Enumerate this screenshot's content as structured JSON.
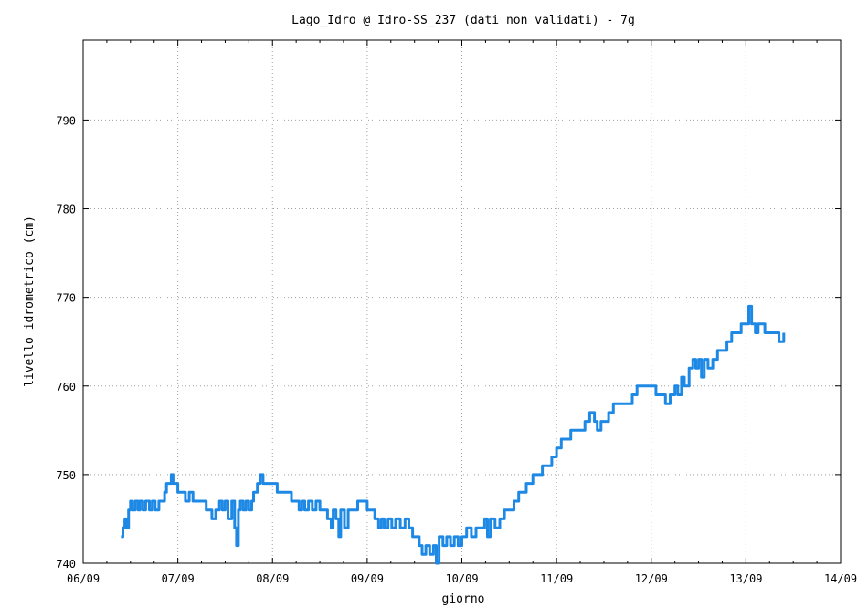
{
  "chart_data": {
    "type": "line",
    "title": "Lago_Idro @ Idro-SS_237 (dati non validati) - 7g",
    "xlabel": "giorno",
    "ylabel": "livello idrometrico (cm)",
    "xlim": [
      0,
      8
    ],
    "ylim": [
      740,
      799
    ],
    "x_ticks": [
      {
        "v": 0,
        "label": "06/09"
      },
      {
        "v": 1,
        "label": "07/09"
      },
      {
        "v": 2,
        "label": "08/09"
      },
      {
        "v": 3,
        "label": "09/09"
      },
      {
        "v": 4,
        "label": "10/09"
      },
      {
        "v": 5,
        "label": "11/09"
      },
      {
        "v": 6,
        "label": "12/09"
      },
      {
        "v": 7,
        "label": "13/09"
      },
      {
        "v": 8,
        "label": "14/09"
      }
    ],
    "y_ticks": [
      {
        "v": 740,
        "label": "740"
      },
      {
        "v": 750,
        "label": "750"
      },
      {
        "v": 760,
        "label": "760"
      },
      {
        "v": 770,
        "label": "770"
      },
      {
        "v": 780,
        "label": "780"
      },
      {
        "v": 790,
        "label": "790"
      }
    ],
    "grid": true,
    "line_color": "#1e88e5",
    "series": [
      {
        "values": [
          [
            0.4,
            743
          ],
          [
            0.42,
            744
          ],
          [
            0.44,
            745
          ],
          [
            0.46,
            744
          ],
          [
            0.48,
            746
          ],
          [
            0.5,
            747
          ],
          [
            0.52,
            746
          ],
          [
            0.55,
            747
          ],
          [
            0.58,
            746
          ],
          [
            0.6,
            747
          ],
          [
            0.63,
            746
          ],
          [
            0.66,
            747
          ],
          [
            0.7,
            746
          ],
          [
            0.73,
            747
          ],
          [
            0.76,
            746
          ],
          [
            0.8,
            747
          ],
          [
            0.84,
            747
          ],
          [
            0.86,
            748
          ],
          [
            0.88,
            749
          ],
          [
            0.91,
            749
          ],
          [
            0.93,
            750
          ],
          [
            0.95,
            749
          ],
          [
            0.97,
            749
          ],
          [
            1.0,
            748
          ],
          [
            1.05,
            748
          ],
          [
            1.08,
            747
          ],
          [
            1.12,
            748
          ],
          [
            1.16,
            747
          ],
          [
            1.2,
            747
          ],
          [
            1.25,
            747
          ],
          [
            1.3,
            746
          ],
          [
            1.33,
            746
          ],
          [
            1.36,
            745
          ],
          [
            1.4,
            746
          ],
          [
            1.44,
            747
          ],
          [
            1.47,
            746
          ],
          [
            1.5,
            747
          ],
          [
            1.53,
            745
          ],
          [
            1.57,
            747
          ],
          [
            1.6,
            744
          ],
          [
            1.62,
            742
          ],
          [
            1.64,
            746
          ],
          [
            1.66,
            747
          ],
          [
            1.69,
            746
          ],
          [
            1.72,
            747
          ],
          [
            1.75,
            746
          ],
          [
            1.78,
            747
          ],
          [
            1.8,
            748
          ],
          [
            1.84,
            749
          ],
          [
            1.87,
            750
          ],
          [
            1.9,
            749
          ],
          [
            1.95,
            749
          ],
          [
            2.0,
            749
          ],
          [
            2.05,
            748
          ],
          [
            2.1,
            748
          ],
          [
            2.15,
            748
          ],
          [
            2.2,
            747
          ],
          [
            2.25,
            747
          ],
          [
            2.28,
            746
          ],
          [
            2.31,
            747
          ],
          [
            2.34,
            746
          ],
          [
            2.38,
            747
          ],
          [
            2.42,
            746
          ],
          [
            2.46,
            747
          ],
          [
            2.5,
            746
          ],
          [
            2.55,
            746
          ],
          [
            2.58,
            745
          ],
          [
            2.62,
            744
          ],
          [
            2.64,
            746
          ],
          [
            2.67,
            745
          ],
          [
            2.7,
            743
          ],
          [
            2.72,
            746
          ],
          [
            2.76,
            744
          ],
          [
            2.8,
            746
          ],
          [
            2.85,
            746
          ],
          [
            2.9,
            747
          ],
          [
            2.95,
            747
          ],
          [
            3.0,
            746
          ],
          [
            3.05,
            746
          ],
          [
            3.08,
            745
          ],
          [
            3.12,
            744
          ],
          [
            3.15,
            745
          ],
          [
            3.18,
            744
          ],
          [
            3.22,
            745
          ],
          [
            3.26,
            744
          ],
          [
            3.3,
            745
          ],
          [
            3.35,
            744
          ],
          [
            3.4,
            745
          ],
          [
            3.44,
            744
          ],
          [
            3.48,
            743
          ],
          [
            3.52,
            743
          ],
          [
            3.55,
            742
          ],
          [
            3.58,
            741
          ],
          [
            3.62,
            742
          ],
          [
            3.66,
            741
          ],
          [
            3.7,
            742
          ],
          [
            3.73,
            740
          ],
          [
            3.76,
            743
          ],
          [
            3.8,
            742
          ],
          [
            3.84,
            743
          ],
          [
            3.88,
            742
          ],
          [
            3.92,
            743
          ],
          [
            3.96,
            742
          ],
          [
            4.0,
            743
          ],
          [
            4.05,
            744
          ],
          [
            4.1,
            743
          ],
          [
            4.15,
            744
          ],
          [
            4.2,
            744
          ],
          [
            4.24,
            745
          ],
          [
            4.27,
            743
          ],
          [
            4.3,
            745
          ],
          [
            4.35,
            744
          ],
          [
            4.4,
            745
          ],
          [
            4.45,
            746
          ],
          [
            4.5,
            746
          ],
          [
            4.55,
            747
          ],
          [
            4.6,
            748
          ],
          [
            4.65,
            748
          ],
          [
            4.68,
            749
          ],
          [
            4.72,
            749
          ],
          [
            4.75,
            750
          ],
          [
            4.8,
            750
          ],
          [
            4.85,
            751
          ],
          [
            4.9,
            751
          ],
          [
            4.95,
            752
          ],
          [
            5.0,
            753
          ],
          [
            5.05,
            754
          ],
          [
            5.1,
            754
          ],
          [
            5.15,
            755
          ],
          [
            5.2,
            755
          ],
          [
            5.25,
            755
          ],
          [
            5.3,
            756
          ],
          [
            5.35,
            757
          ],
          [
            5.4,
            756
          ],
          [
            5.43,
            755
          ],
          [
            5.47,
            756
          ],
          [
            5.5,
            756
          ],
          [
            5.55,
            757
          ],
          [
            5.6,
            758
          ],
          [
            5.65,
            758
          ],
          [
            5.7,
            758
          ],
          [
            5.75,
            758
          ],
          [
            5.8,
            759
          ],
          [
            5.85,
            760
          ],
          [
            5.9,
            760
          ],
          [
            6.0,
            760
          ],
          [
            6.05,
            759
          ],
          [
            6.1,
            759
          ],
          [
            6.15,
            758
          ],
          [
            6.2,
            759
          ],
          [
            6.25,
            760
          ],
          [
            6.28,
            759
          ],
          [
            6.32,
            761
          ],
          [
            6.35,
            760
          ],
          [
            6.4,
            762
          ],
          [
            6.44,
            763
          ],
          [
            6.47,
            762
          ],
          [
            6.5,
            763
          ],
          [
            6.53,
            761
          ],
          [
            6.56,
            763
          ],
          [
            6.6,
            762
          ],
          [
            6.65,
            763
          ],
          [
            6.7,
            764
          ],
          [
            6.75,
            764
          ],
          [
            6.8,
            765
          ],
          [
            6.85,
            766
          ],
          [
            6.9,
            766
          ],
          [
            6.95,
            767
          ],
          [
            7.0,
            767
          ],
          [
            7.03,
            769
          ],
          [
            7.06,
            767
          ],
          [
            7.1,
            766
          ],
          [
            7.13,
            767
          ],
          [
            7.16,
            767
          ],
          [
            7.2,
            766
          ],
          [
            7.25,
            766
          ],
          [
            7.3,
            766
          ],
          [
            7.35,
            765
          ],
          [
            7.38,
            765
          ],
          [
            7.4,
            766
          ]
        ]
      }
    ]
  }
}
